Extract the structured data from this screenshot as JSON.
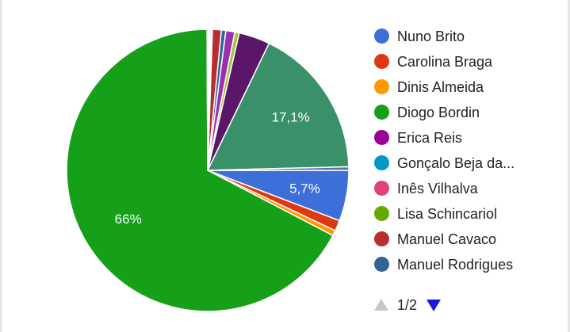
{
  "chart_data": {
    "type": "pie",
    "slices": [
      {
        "name": "Nuno Brito",
        "value": 5.7,
        "color": "#3e6fd8",
        "label": "5,7%"
      },
      {
        "name": "Carolina Braga",
        "value": 1.2,
        "color": "#dc3912",
        "label": ""
      },
      {
        "name": "Dinis Almeida",
        "value": 0.6,
        "color": "#ff9900",
        "label": ""
      },
      {
        "name": "Diogo Bordin",
        "value": 66.0,
        "color": "#16a01a",
        "label": "66%"
      },
      {
        "name": "Erica Reis",
        "value": 0.15,
        "color": "#990099",
        "label": ""
      },
      {
        "name": "Gonçalo Beja da...",
        "value": 0.15,
        "color": "#0099c6",
        "label": ""
      },
      {
        "name": "Inês Vilhalva",
        "value": 0.15,
        "color": "#dd4477",
        "label": ""
      },
      {
        "name": "Lisa Schincariol",
        "value": 0.15,
        "color": "#66aa00",
        "label": ""
      },
      {
        "name": "Manuel Cavaco",
        "value": 1.0,
        "color": "#b82e2e",
        "label": ""
      },
      {
        "name": "Manuel Rodrigues",
        "value": 0.5,
        "color": "#316395",
        "label": ""
      },
      {
        "name": "",
        "value": 1.0,
        "color": "#9a2fb0",
        "label": ""
      },
      {
        "name": "",
        "value": 0.5,
        "color": "#a4c43a",
        "label": ""
      },
      {
        "name": "",
        "value": 3.5,
        "color": "#5a1668",
        "label": ""
      },
      {
        "name": "",
        "value": 17.1,
        "color": "#3a9068",
        "label": "17,1%"
      },
      {
        "name": "",
        "value": 0.4,
        "color": "#5574a6",
        "label": ""
      }
    ],
    "legend_position": "right",
    "legend_page": "1/2"
  }
}
